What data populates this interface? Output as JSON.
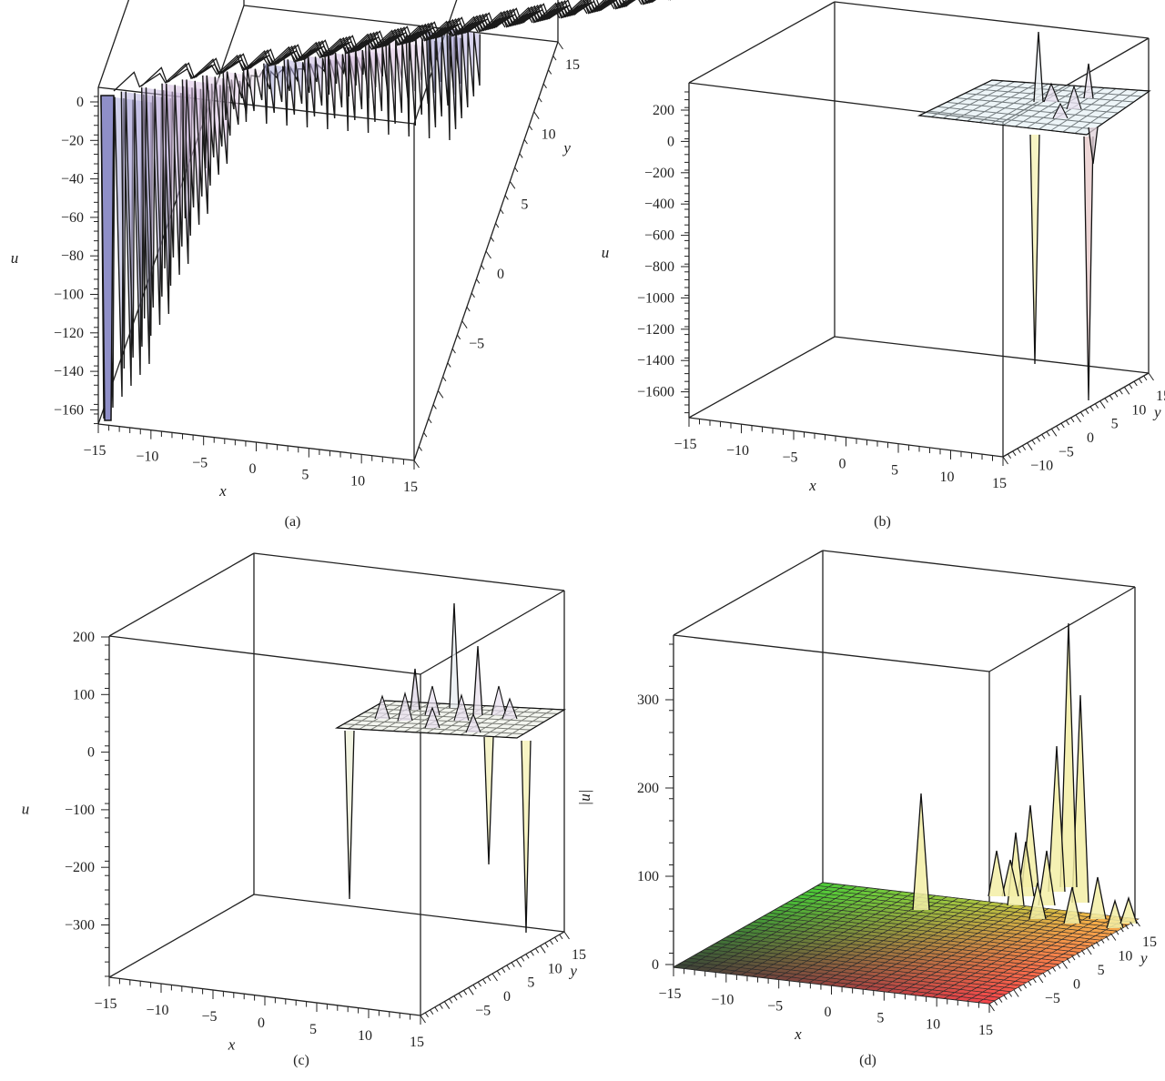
{
  "chart_data": [
    {
      "type": "surface3d",
      "panel_label": "(a)",
      "xlabel": "x",
      "ylabel": "y",
      "zlabel": "u",
      "x_ticks": [
        "-15",
        "-10",
        "-5",
        "0",
        "5",
        "10",
        "15"
      ],
      "y_ticks": [
        "-5",
        "0",
        "5",
        "10",
        "15"
      ],
      "z_ticks": [
        "0",
        "-20",
        "-40",
        "-60",
        "-80",
        "-100",
        "-120",
        "-140",
        "-160"
      ],
      "xlim": [
        -15,
        15
      ],
      "ylim": [
        -15,
        15
      ],
      "zlim": [
        -165,
        10
      ],
      "peaks": [
        {
          "x": -14.5,
          "y": -14,
          "u": -163
        },
        {
          "x": -12.5,
          "y": -12,
          "u": -70
        },
        {
          "x": -11,
          "y": -10,
          "u": -62
        },
        {
          "x": -8,
          "y": -8,
          "u": -47
        },
        {
          "x": -5,
          "y": -6,
          "u": -35
        },
        {
          "x": 0,
          "y": -4,
          "u": -30
        },
        {
          "x": 5,
          "y": -2,
          "u": -25
        },
        {
          "x": 10,
          "y": 0,
          "u": -20
        }
      ]
    },
    {
      "type": "surface3d",
      "panel_label": "(b)",
      "xlabel": "x",
      "ylabel": "y",
      "zlabel": "u",
      "x_ticks": [
        "-15",
        "-10",
        "-5",
        "0",
        "5",
        "10",
        "15"
      ],
      "y_ticks": [
        "-10",
        "-5",
        "0",
        "5",
        "10",
        "15"
      ],
      "z_ticks": [
        "200",
        "0",
        "-200",
        "-400",
        "-600",
        "-800",
        "-1000",
        "-1200",
        "-1400",
        "-1600"
      ],
      "xlim": [
        -15,
        15
      ],
      "ylim": [
        -15,
        15
      ],
      "zlim": [
        -1750,
        300
      ],
      "peaks": [
        {
          "x": 8,
          "y": 4,
          "u": -1400
        },
        {
          "x": 14,
          "y": 6,
          "u": -1700
        },
        {
          "x": 9,
          "y": 12,
          "u": 270
        },
        {
          "x": 14,
          "y": 10,
          "u": 150
        }
      ]
    },
    {
      "type": "surface3d",
      "panel_label": "(c)",
      "xlabel": "x",
      "ylabel": "y",
      "zlabel": "u",
      "x_ticks": [
        "-15",
        "-10",
        "-5",
        "0",
        "5",
        "10",
        "15"
      ],
      "y_ticks": [
        "-5",
        "0",
        "5",
        "10",
        "15"
      ],
      "z_ticks": [
        "200",
        "100",
        "0",
        "-100",
        "-200",
        "-300"
      ],
      "xlim": [
        -15,
        15
      ],
      "ylim": [
        -15,
        15
      ],
      "zlim": [
        -380,
        210
      ],
      "peaks": [
        {
          "x": 4,
          "y": 3,
          "u": -250
        },
        {
          "x": 13,
          "y": 2,
          "u": -190
        },
        {
          "x": 14,
          "y": 8,
          "u": -290
        },
        {
          "x": 8,
          "y": 10,
          "u": 180
        },
        {
          "x": 10,
          "y": 9,
          "u": 120
        }
      ]
    },
    {
      "type": "surface3d",
      "panel_label": "(d)",
      "xlabel": "x",
      "ylabel": "y",
      "zlabel": "|u|",
      "x_ticks": [
        "-15",
        "-10",
        "-5",
        "0",
        "5",
        "10",
        "15"
      ],
      "y_ticks": [
        "-5",
        "0",
        "5",
        "10",
        "15"
      ],
      "z_ticks": [
        "300",
        "200",
        "100",
        "0"
      ],
      "xlim": [
        -15,
        15
      ],
      "ylim": [
        -15,
        15
      ],
      "zlim": [
        0,
        380
      ],
      "peaks": [
        {
          "x": 5,
          "y": 14,
          "u": 330
        },
        {
          "x": 13,
          "y": 1,
          "u": 230
        },
        {
          "x": 14,
          "y": 5,
          "u": 310
        },
        {
          "x": 15,
          "y": 10,
          "u": 370
        },
        {
          "x": 10,
          "y": 5,
          "u": 100
        }
      ]
    }
  ]
}
